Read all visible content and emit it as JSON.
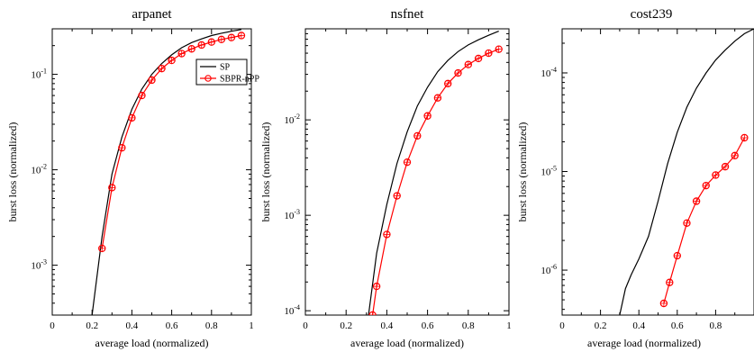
{
  "chart_data": [
    {
      "type": "line",
      "title": "arpanet",
      "xlabel": "average load (normalized)",
      "ylabel": "burst loss (normalized)",
      "xlim": [
        0,
        1
      ],
      "xscale": "linear",
      "yscale": "log",
      "ylim": [
        0.0003,
        0.3
      ],
      "xticks": [
        "0",
        "0.2",
        "0.4",
        "0.6",
        "0.8",
        "1"
      ],
      "yticks": [
        {
          "value": 0.001,
          "base": "10",
          "exp": "-3"
        },
        {
          "value": 0.01,
          "base": "10",
          "exp": "-2"
        },
        {
          "value": 0.1,
          "base": "10",
          "exp": "-1"
        }
      ],
      "grid": false,
      "legend": {
        "position": "top-right",
        "entries": [
          "SP",
          "SBPR-nPP"
        ]
      },
      "series": [
        {
          "name": "SP",
          "color": "#000000",
          "marker": "none",
          "x": [
            0.2,
            0.25,
            0.3,
            0.35,
            0.4,
            0.45,
            0.5,
            0.55,
            0.6,
            0.65,
            0.7,
            0.75,
            0.8,
            0.85,
            0.9,
            0.95
          ],
          "y": [
            0.0003,
            0.002,
            0.009,
            0.022,
            0.043,
            0.07,
            0.1,
            0.13,
            0.16,
            0.19,
            0.215,
            0.235,
            0.255,
            0.27,
            0.283,
            0.295
          ]
        },
        {
          "name": "SBPR-nPP",
          "color": "#ff0000",
          "marker": "circle",
          "x": [
            0.25,
            0.3,
            0.35,
            0.4,
            0.45,
            0.5,
            0.55,
            0.6,
            0.65,
            0.7,
            0.75,
            0.8,
            0.85,
            0.9,
            0.95
          ],
          "y": [
            0.0015,
            0.0065,
            0.017,
            0.035,
            0.06,
            0.087,
            0.115,
            0.14,
            0.165,
            0.185,
            0.203,
            0.218,
            0.232,
            0.243,
            0.255
          ]
        }
      ]
    },
    {
      "type": "line",
      "title": "nsfnet",
      "xlabel": "average load (normalized)",
      "ylabel": "burst loss (normalized)",
      "xlim": [
        0,
        1
      ],
      "xscale": "linear",
      "yscale": "log",
      "ylim": [
        9e-05,
        0.09
      ],
      "xticks": [
        "0",
        "0.2",
        "0.4",
        "0.6",
        "0.8",
        "1"
      ],
      "yticks": [
        {
          "value": 0.0001,
          "base": "10",
          "exp": "-4"
        },
        {
          "value": 0.001,
          "base": "10",
          "exp": "-3"
        },
        {
          "value": 0.01,
          "base": "10",
          "exp": "-2"
        }
      ],
      "grid": false,
      "series": [
        {
          "name": "SP",
          "color": "#000000",
          "marker": "none",
          "x": [
            0.31,
            0.35,
            0.4,
            0.45,
            0.5,
            0.55,
            0.6,
            0.65,
            0.7,
            0.75,
            0.8,
            0.85,
            0.9,
            0.95
          ],
          "y": [
            9e-05,
            0.0004,
            0.0013,
            0.0035,
            0.0075,
            0.014,
            0.022,
            0.032,
            0.042,
            0.052,
            0.061,
            0.069,
            0.077,
            0.085
          ]
        },
        {
          "name": "SBPR-nPP",
          "color": "#ff0000",
          "marker": "circle",
          "x": [
            0.33,
            0.35,
            0.4,
            0.45,
            0.5,
            0.55,
            0.6,
            0.65,
            0.7,
            0.75,
            0.8,
            0.85,
            0.9,
            0.95
          ],
          "y": [
            9e-05,
            0.00018,
            0.00063,
            0.0016,
            0.0036,
            0.0068,
            0.011,
            0.017,
            0.024,
            0.031,
            0.038,
            0.044,
            0.05,
            0.055
          ]
        }
      ]
    },
    {
      "type": "line",
      "title": "cost239",
      "xlabel": "average load (normalized)",
      "ylabel": "burst loss (normalized)",
      "xlim": [
        0,
        1
      ],
      "xscale": "linear",
      "yscale": "log",
      "ylim": [
        3.5e-07,
        0.00028
      ],
      "xticks": [
        "0",
        "0.2",
        "0.4",
        "0.6",
        "0.8"
      ],
      "yticks": [
        {
          "value": 1e-06,
          "base": "10",
          "exp": "-6"
        },
        {
          "value": 1e-05,
          "base": "10",
          "exp": "-5"
        },
        {
          "value": 0.0001,
          "base": "10",
          "exp": "-4"
        }
      ],
      "grid": false,
      "series": [
        {
          "name": "SP",
          "color": "#000000",
          "marker": "none",
          "x": [
            0.3,
            0.33,
            0.36,
            0.4,
            0.45,
            0.5,
            0.55,
            0.6,
            0.65,
            0.7,
            0.75,
            0.8,
            0.85,
            0.9,
            0.95,
            1.0
          ],
          "y": [
            3.5e-07,
            6.5e-07,
            9e-07,
            1.3e-06,
            2.2e-06,
            5e-06,
            1.2e-05,
            2.5e-05,
            4.5e-05,
            7e-05,
            0.0001,
            0.000135,
            0.00017,
            0.00021,
            0.00025,
            0.00028
          ]
        },
        {
          "name": "SBPR-nPP",
          "color": "#ff0000",
          "marker": "circle",
          "x": [
            0.53,
            0.56,
            0.6,
            0.65,
            0.7,
            0.75,
            0.8,
            0.85,
            0.9,
            0.95
          ],
          "y": [
            4.6e-07,
            7.5e-07,
            1.4e-06,
            3e-06,
            5e-06,
            7.2e-06,
            9.2e-06,
            1.12e-05,
            1.45e-05,
            2.2e-05
          ]
        }
      ]
    }
  ]
}
